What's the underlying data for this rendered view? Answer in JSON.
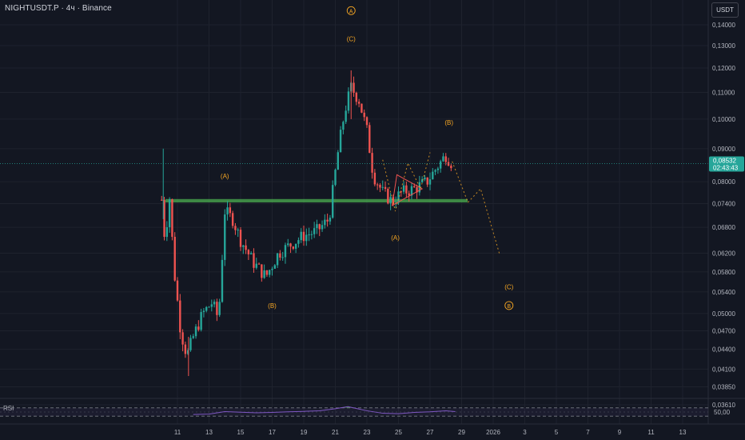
{
  "header": {
    "title": "NIGHTUSDT.P · 4ч · Binance",
    "currency": "USDT"
  },
  "colors": {
    "background": "#131722",
    "up": "#26a69a",
    "down": "#ef5350",
    "wave_label": "#f5a623",
    "support_zone": "#4caf50",
    "rsi_line": "#7e57c2",
    "price_tag": "#26a69a",
    "grid": "#1e222d",
    "projection": "#f5a623"
  },
  "chart_data": {
    "type": "candlestick",
    "symbol": "NIGHTUSDT.P",
    "interval": "4ч",
    "exchange": "Binance",
    "y_axis_scale": "log",
    "y_ticks": [
      "0,14000",
      "0,13000",
      "0,12000",
      "0,11000",
      "0,10000",
      "0,09000",
      "0,08000",
      "0,07400",
      "0,06800",
      "0,06200",
      "0,05800",
      "0,05400",
      "0,05000",
      "0,04700",
      "0,04400",
      "0,04100",
      "0,03850",
      "0,03610"
    ],
    "x_ticks": [
      "11",
      "13",
      "15",
      "17",
      "19",
      "21",
      "23",
      "25",
      "27",
      "29",
      "2026",
      "3",
      "5",
      "7",
      "9",
      "11",
      "13"
    ],
    "current_price": {
      "value": "0,08532",
      "countdown": "02:43:43",
      "price": 0.08532
    },
    "support_zone": {
      "low": 0.0743,
      "high": 0.0752
    },
    "ohlc_anchor_path": [
      {
        "x": 10.0,
        "price": 0.075
      },
      {
        "x": 10.2,
        "price": 0.065
      },
      {
        "x": 10.5,
        "price": 0.0755
      },
      {
        "x": 10.8,
        "price": 0.058
      },
      {
        "x": 11.2,
        "price": 0.047
      },
      {
        "x": 11.6,
        "price": 0.043
      },
      {
        "x": 12.0,
        "price": 0.046
      },
      {
        "x": 12.6,
        "price": 0.05
      },
      {
        "x": 13.2,
        "price": 0.052
      },
      {
        "x": 13.6,
        "price": 0.049
      },
      {
        "x": 14.0,
        "price": 0.072
      },
      {
        "x": 14.5,
        "price": 0.07
      },
      {
        "x": 15.0,
        "price": 0.065
      },
      {
        "x": 15.8,
        "price": 0.06
      },
      {
        "x": 16.6,
        "price": 0.057
      },
      {
        "x": 17.4,
        "price": 0.062
      },
      {
        "x": 18.2,
        "price": 0.064
      },
      {
        "x": 19.0,
        "price": 0.066
      },
      {
        "x": 19.8,
        "price": 0.067
      },
      {
        "x": 20.6,
        "price": 0.07
      },
      {
        "x": 21.2,
        "price": 0.09
      },
      {
        "x": 21.6,
        "price": 0.103
      },
      {
        "x": 22.0,
        "price": 0.112
      },
      {
        "x": 22.5,
        "price": 0.107
      },
      {
        "x": 23.0,
        "price": 0.096
      },
      {
        "x": 23.4,
        "price": 0.082
      },
      {
        "x": 24.0,
        "price": 0.077
      },
      {
        "x": 24.6,
        "price": 0.0745
      },
      {
        "x": 25.2,
        "price": 0.077
      },
      {
        "x": 26.0,
        "price": 0.078
      },
      {
        "x": 26.8,
        "price": 0.08
      },
      {
        "x": 27.4,
        "price": 0.084
      },
      {
        "x": 28.0,
        "price": 0.088
      },
      {
        "x": 28.4,
        "price": 0.0853
      }
    ],
    "wave_labels": [
      {
        "text": "Ⓐ",
        "x": 22.0,
        "price": 0.146,
        "circled": true
      },
      {
        "text": "(C)",
        "x": 22.0,
        "price": 0.132
      },
      {
        "text": "(A)",
        "x": 14.0,
        "price": 0.081
      },
      {
        "text": "(B)",
        "x": 17.0,
        "price": 0.051
      },
      {
        "text": "(A)",
        "x": 24.8,
        "price": 0.065
      },
      {
        "text": "(B)",
        "x": 28.2,
        "price": 0.098
      },
      {
        "text": "(C)",
        "x": 32.0,
        "price": 0.0545
      },
      {
        "text": "Ⓑ",
        "x": 32.0,
        "price": 0.051,
        "circled": true
      }
    ],
    "projection_path": [
      {
        "x": 24.0,
        "price": 0.0865
      },
      {
        "x": 24.8,
        "price": 0.072
      },
      {
        "x": 25.6,
        "price": 0.0855
      },
      {
        "x": 26.4,
        "price": 0.078
      },
      {
        "x": 27.0,
        "price": 0.0888
      }
    ],
    "projection_future": [
      {
        "x": 28.4,
        "price": 0.086
      },
      {
        "x": 29.4,
        "price": 0.0743
      },
      {
        "x": 30.2,
        "price": 0.078
      },
      {
        "x": 31.4,
        "price": 0.0618
      }
    ],
    "triangle": [
      {
        "x": 24.6,
        "price": 0.0735
      },
      {
        "x": 24.9,
        "price": 0.082
      },
      {
        "x": 26.5,
        "price": 0.078
      }
    ],
    "rsi": {
      "label": "RSI",
      "tick": "50,00",
      "upper_band": 70,
      "lower_band": 30,
      "ylim": [
        0,
        100
      ],
      "values": [
        {
          "x": 12.0,
          "v": 38
        },
        {
          "x": 13.0,
          "v": 40
        },
        {
          "x": 14.0,
          "v": 52
        },
        {
          "x": 15.0,
          "v": 49
        },
        {
          "x": 16.0,
          "v": 46
        },
        {
          "x": 17.0,
          "v": 48
        },
        {
          "x": 18.0,
          "v": 51
        },
        {
          "x": 19.0,
          "v": 53
        },
        {
          "x": 20.0,
          "v": 56
        },
        {
          "x": 21.0,
          "v": 66
        },
        {
          "x": 21.8,
          "v": 76
        },
        {
          "x": 22.4,
          "v": 66
        },
        {
          "x": 23.0,
          "v": 56
        },
        {
          "x": 24.0,
          "v": 44
        },
        {
          "x": 25.0,
          "v": 42
        },
        {
          "x": 26.0,
          "v": 48
        },
        {
          "x": 27.0,
          "v": 51
        },
        {
          "x": 28.0,
          "v": 56
        },
        {
          "x": 28.6,
          "v": 52
        }
      ]
    }
  }
}
